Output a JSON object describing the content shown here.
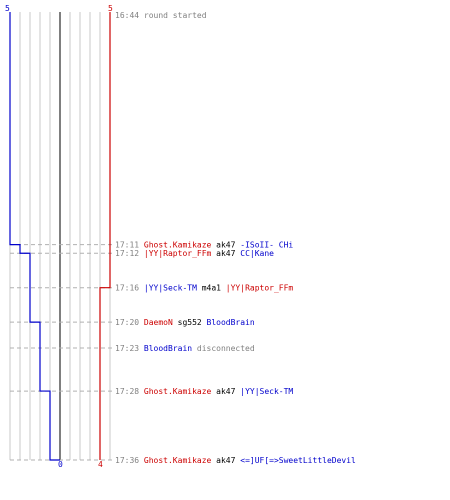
{
  "chart_data": {
    "type": "line",
    "y_time_range": [
      "16:44",
      "17:36"
    ],
    "teams": [
      {
        "name": "",
        "color": "#0000cc",
        "start_count": 5,
        "end_count": 0
      },
      {
        "name": "",
        "color": "#cc0000",
        "start_count": 5,
        "end_count": 4
      }
    ],
    "blue_steps": [
      {
        "time": "17:11",
        "count": 4
      },
      {
        "time": "17:12",
        "count": 3
      },
      {
        "time": "17:20",
        "count": 2
      },
      {
        "time": "17:28",
        "count": 1
      },
      {
        "time": "17:36",
        "count": 0
      }
    ],
    "red_steps": [
      {
        "time": "17:16",
        "count": 4
      }
    ],
    "events": [
      {
        "time": "16:44",
        "parts": [
          {
            "text": "round started",
            "color": "#808080"
          }
        ]
      },
      {
        "time": "17:11",
        "parts": [
          {
            "text": "Ghost.Kamikaze",
            "color": "#cc0000"
          },
          {
            "text": "ak47",
            "color": "#000000"
          },
          {
            "text": "-ISoII- CHi",
            "color": "#0000cc"
          }
        ]
      },
      {
        "time": "17:12",
        "parts": [
          {
            "text": "|YY|Raptor_FFm",
            "color": "#cc0000"
          },
          {
            "text": "ak47",
            "color": "#000000"
          },
          {
            "text": "CC|Kane",
            "color": "#0000cc"
          }
        ]
      },
      {
        "time": "17:16",
        "parts": [
          {
            "text": "|YY|Seck-TM",
            "color": "#0000cc"
          },
          {
            "text": "m4a1",
            "color": "#000000"
          },
          {
            "text": "|YY|Raptor_FFm",
            "color": "#cc0000"
          }
        ]
      },
      {
        "time": "17:20",
        "parts": [
          {
            "text": "DaemoN",
            "color": "#cc0000"
          },
          {
            "text": "sg552",
            "color": "#000000"
          },
          {
            "text": "BloodBrain",
            "color": "#0000cc"
          }
        ]
      },
      {
        "time": "17:23",
        "parts": [
          {
            "text": "BloodBrain",
            "color": "#0000cc"
          },
          {
            "text": "disconnected",
            "color": "#808080"
          }
        ]
      },
      {
        "time": "17:28",
        "parts": [
          {
            "text": "Ghost.Kamikaze",
            "color": "#cc0000"
          },
          {
            "text": "ak47",
            "color": "#000000"
          },
          {
            "text": "|YY|Seck-TM",
            "color": "#0000cc"
          }
        ]
      },
      {
        "time": "17:36",
        "parts": [
          {
            "text": "Ghost.Kamikaze",
            "color": "#cc0000"
          },
          {
            "text": "ak47",
            "color": "#000000"
          },
          {
            "text": "<=]UF[=>SweetLittleDevil",
            "color": "#0000cc"
          }
        ]
      }
    ]
  }
}
